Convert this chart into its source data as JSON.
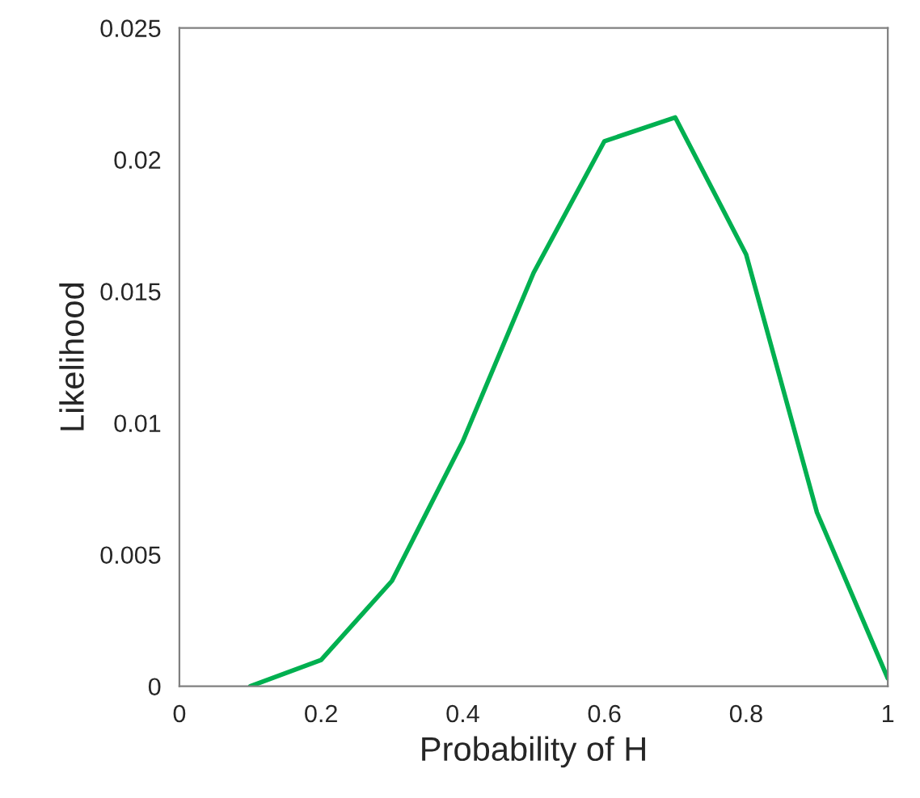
{
  "chart_data": {
    "type": "line",
    "xlabel": "Probability of H",
    "ylabel": "Likelihood",
    "x": [
      0.1,
      0.2,
      0.3,
      0.4,
      0.5,
      0.6,
      0.7,
      0.8,
      0.9,
      1.0
    ],
    "series": [
      {
        "color": "#00b050",
        "values": [
          0,
          0.001,
          0.004,
          0.0093,
          0.0157,
          0.0207,
          0.0216,
          0.0164,
          0.0066,
          0.0003
        ]
      }
    ],
    "xlim": [
      0,
      1
    ],
    "ylim": [
      0,
      0.025
    ],
    "xticks": [
      0,
      0.2,
      0.4,
      0.6,
      0.8,
      1
    ],
    "yticks": [
      0,
      0.005,
      0.01,
      0.015,
      0.02,
      0.025
    ],
    "grid": false,
    "marker": "none",
    "line_style": "solid"
  }
}
